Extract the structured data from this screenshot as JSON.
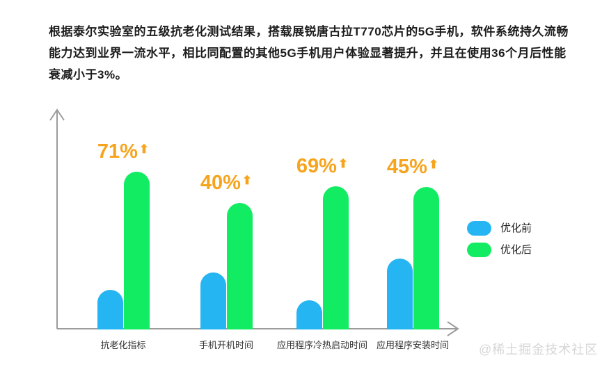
{
  "paragraph": {
    "lines": [
      "根据泰尔实验室的五级抗老化测试结果，搭载展锐唐古拉T770芯片的5G手机，软件系统持久流畅",
      "能力达到业界一流水平，相比同配置的其他5G手机用户体验显著提升，并且在使用36个月后性能",
      "衰减小于3%。"
    ]
  },
  "chart_data": {
    "type": "bar",
    "categories": [
      "抗老化指标",
      "手机开机时间",
      "应用程序冷热启动时间",
      "应用程序安装时间"
    ],
    "series": [
      {
        "name": "优化前",
        "color": "#25B5F2",
        "values": [
          57,
          82,
          42,
          102
        ]
      },
      {
        "name": "优化后",
        "color": "#12EC62",
        "values": [
          227,
          182,
          206,
          205
        ]
      }
    ],
    "annotations": [
      {
        "text": "71%",
        "arrow": "⬆"
      },
      {
        "text": "40%",
        "arrow": "⬆"
      },
      {
        "text": "69%",
        "arrow": "⬆"
      },
      {
        "text": "45%",
        "arrow": "⬆"
      }
    ],
    "annotation_color": "#F6A41D",
    "axis_color": "#9C9C9C",
    "xlabel": "",
    "ylabel": "",
    "ylim": [
      0,
      260
    ],
    "grid": false,
    "legend_position": "right"
  },
  "watermark": "@稀土掘金技术社区"
}
